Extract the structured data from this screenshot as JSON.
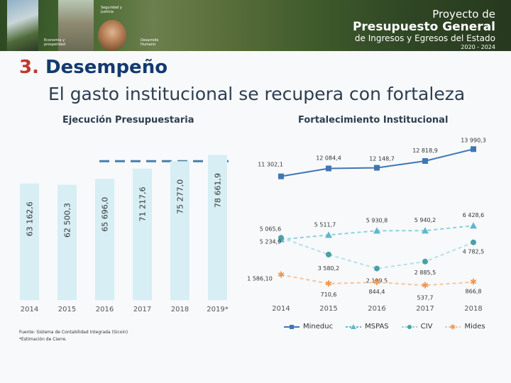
{
  "banner": {
    "captions": [
      "Seguridad y Justicia",
      "Economía y prosperidad",
      "Desarrollo Humano"
    ],
    "title_line1": "Proyecto de",
    "title_line2": "Presupuesto General",
    "title_line3": "de Ingresos y Egresos del Estado",
    "title_line4": "2020 - 2024"
  },
  "section": {
    "number": "3.",
    "title": "Desempeño"
  },
  "subtitle": "El gasto institucional se recupera con fortaleza",
  "footnote": {
    "line1": "Fuente: Sistema de Contabilidad Integrada (Sicoin)",
    "line2": "*Estimación de Cierre."
  },
  "colors": {
    "bar": "#d6eef4",
    "dash": "#4a7fa7",
    "mineduc": "#3f77b4",
    "mspas": "#5fb7cc",
    "ciw": "#4aa0a8",
    "mides": "#f2954b"
  },
  "chart_data": [
    {
      "type": "bar",
      "title": "Ejecución Presupuestaria",
      "categories": [
        "2014",
        "2015",
        "2016",
        "2017",
        "2018",
        "2019*"
      ],
      "values": [
        63162.6,
        62500.3,
        65696.0,
        71217.6,
        75277.0,
        78661.9
      ],
      "labels": [
        "63 162,6",
        "62 500,3",
        "65 696,0",
        "71 217,6",
        "75 277,0",
        "78 661,9"
      ],
      "reference_line": 75277.0,
      "ylim": [
        0,
        80000
      ]
    },
    {
      "type": "line",
      "title": "Fortalecimiento Institucional",
      "categories": [
        "2014",
        "2015",
        "2016",
        "2017",
        "2018"
      ],
      "series": [
        {
          "name": "Mineduc",
          "values": [
            11302.1,
            12084.4,
            12148.7,
            12818.9,
            13990.3
          ],
          "labels": [
            "11 302,1",
            "12 084,4",
            "12 148,7",
            "12 818,9",
            "13 990,3"
          ]
        },
        {
          "name": "MSPAS",
          "values": [
            5065.6,
            5511.7,
            5930.8,
            5940.2,
            6428.6
          ],
          "labels": [
            "5 065,6",
            "5 511,7",
            "5 930,8",
            "5 940,2",
            "6 428,6"
          ]
        },
        {
          "name": "CIV",
          "values": [
            5234.9,
            3580.2,
            2199.5,
            2885.5,
            4782.5
          ],
          "labels": [
            "5 234,9",
            "3 580,2",
            "2 199,5",
            "2 885,5",
            "4 782,5"
          ]
        },
        {
          "name": "Mides",
          "values": [
            1586.1,
            710.6,
            844.4,
            537.7,
            866.8
          ],
          "labels": [
            "1 586,10",
            "710,6",
            "844,4",
            "537,7",
            "866,8"
          ]
        }
      ]
    }
  ]
}
